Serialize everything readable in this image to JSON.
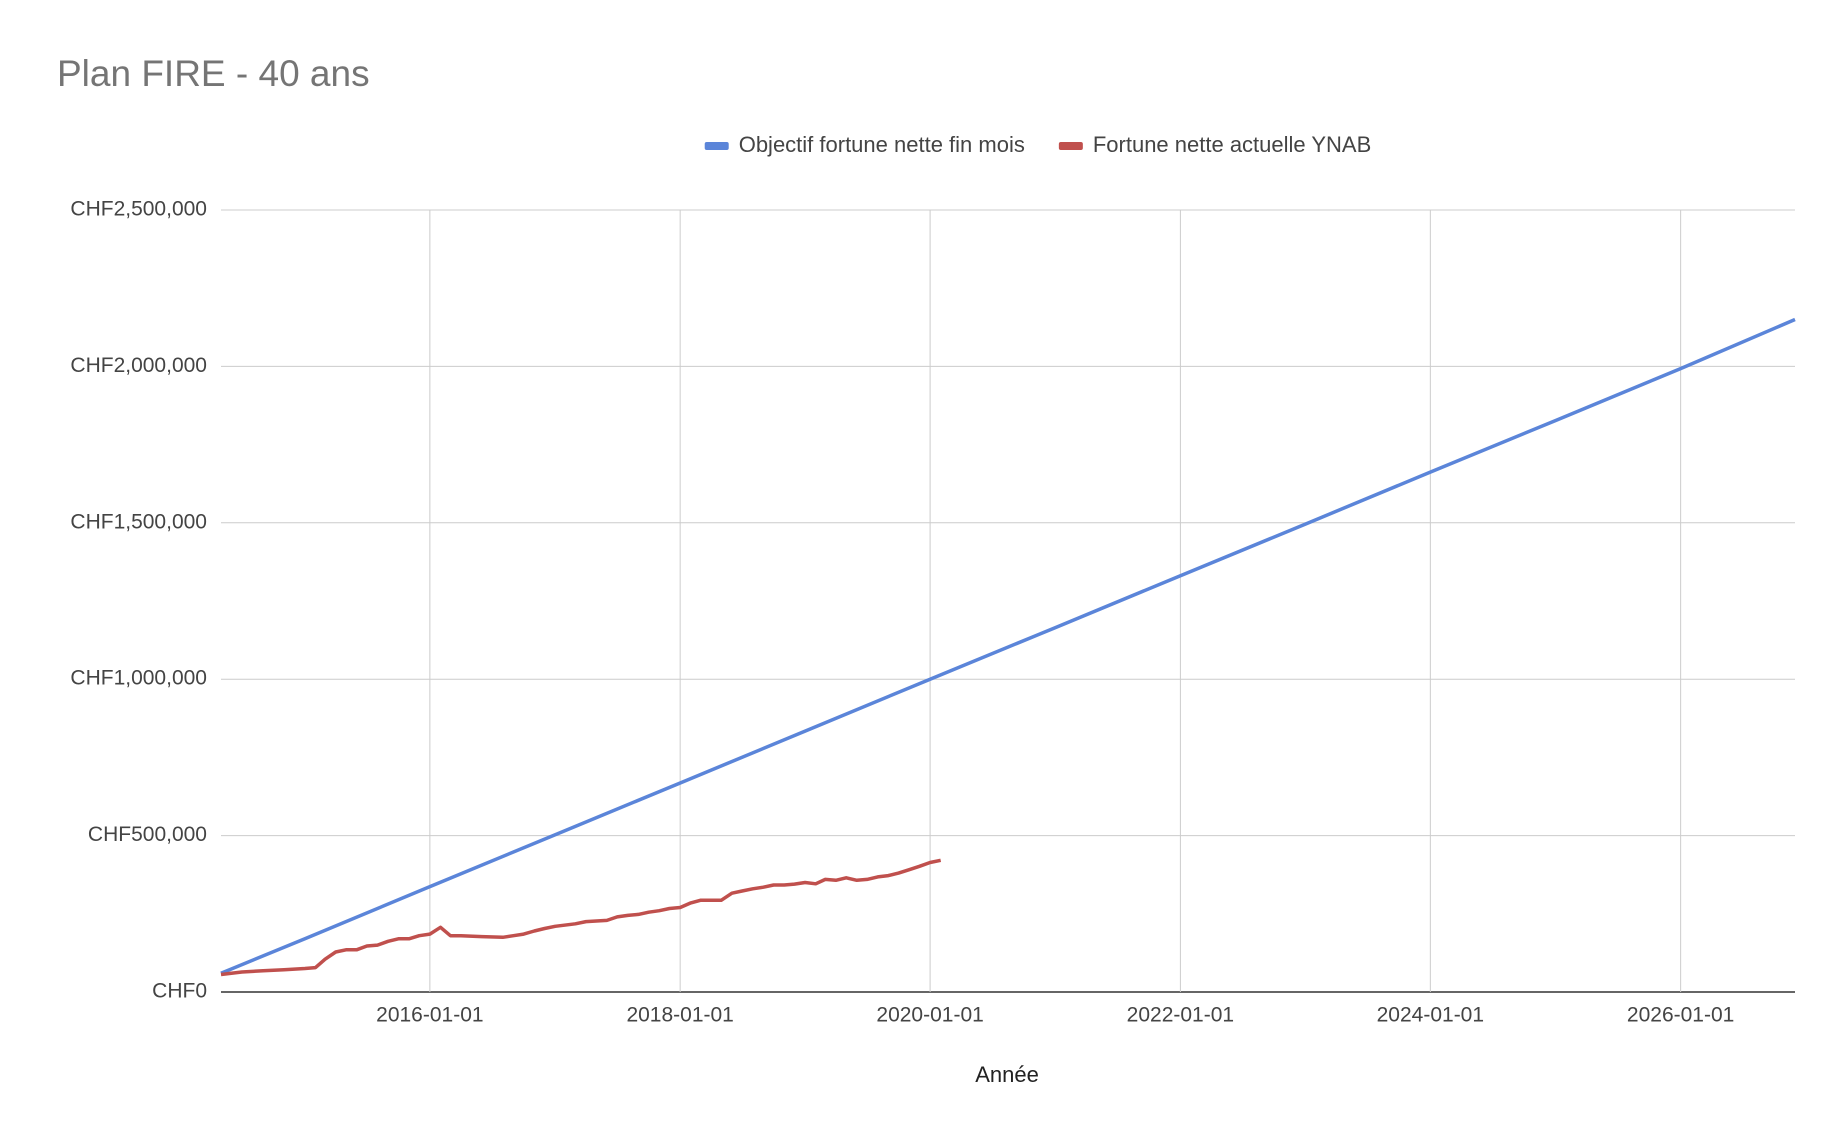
{
  "chart_data": {
    "type": "line",
    "title": "Plan FIRE - 40 ans",
    "x_label": "Année",
    "legend": "top",
    "grid": true,
    "xlim": [
      "2014-05-01",
      "2026-12-01"
    ],
    "xticks": [
      "2016-01-01",
      "2018-01-01",
      "2020-01-01",
      "2022-01-01",
      "2024-01-01",
      "2026-01-01"
    ],
    "ylim": [
      0,
      2500000
    ],
    "yticks": [
      {
        "value": 0,
        "label": "CHF0"
      },
      {
        "value": 500000,
        "label": "CHF500,000"
      },
      {
        "value": 1000000,
        "label": "CHF1,000,000"
      },
      {
        "value": 1500000,
        "label": "CHF1,500,000"
      },
      {
        "value": 2000000,
        "label": "CHF2,000,000"
      },
      {
        "value": 2500000,
        "label": "CHF2,500,000"
      }
    ],
    "series": [
      {
        "name": "Objectif fortune nette fin mois",
        "color": "#5b85d9",
        "x": [
          "2014-05-01",
          "2015-01-01",
          "2016-01-01",
          "2017-01-01",
          "2018-01-01",
          "2019-01-01",
          "2020-01-01",
          "2021-01-01",
          "2022-01-01",
          "2023-01-01",
          "2024-01-01",
          "2025-01-01",
          "2026-01-01",
          "2026-12-01"
        ],
        "values": [
          60000,
          170000,
          337000,
          503000,
          668000,
          834000,
          1000000,
          1165000,
          1331000,
          1496000,
          1662000,
          1827000,
          1993000,
          2150000
        ]
      },
      {
        "name": "Fortune nette actuelle YNAB",
        "color": "#c0504d",
        "x": [
          "2014-05-01",
          "2014-07-01",
          "2014-09-01",
          "2014-11-01",
          "2015-01-01",
          "2015-02-01",
          "2015-03-01",
          "2015-04-01",
          "2015-05-01",
          "2015-06-01",
          "2015-07-01",
          "2015-08-01",
          "2015-09-01",
          "2015-10-01",
          "2015-11-01",
          "2015-12-01",
          "2016-01-01",
          "2016-02-01",
          "2016-03-01",
          "2016-04-01",
          "2016-06-01",
          "2016-08-01",
          "2016-09-01",
          "2016-10-01",
          "2016-11-01",
          "2016-12-01",
          "2017-01-01",
          "2017-03-01",
          "2017-04-01",
          "2017-06-01",
          "2017-07-01",
          "2017-08-01",
          "2017-09-01",
          "2017-10-01",
          "2017-11-01",
          "2017-12-01",
          "2018-01-01",
          "2018-02-01",
          "2018-03-01",
          "2018-04-01",
          "2018-05-01",
          "2018-06-01",
          "2018-07-01",
          "2018-08-01",
          "2018-09-01",
          "2018-10-01",
          "2018-11-01",
          "2018-12-01",
          "2019-01-01",
          "2019-02-01",
          "2019-03-01",
          "2019-04-01",
          "2019-05-01",
          "2019-06-01",
          "2019-07-01",
          "2019-08-01",
          "2019-09-01",
          "2019-10-01",
          "2019-11-01",
          "2019-12-01",
          "2020-01-01",
          "2020-02-01"
        ],
        "values": [
          56000,
          64000,
          68000,
          71000,
          75000,
          78000,
          105000,
          128000,
          135000,
          135000,
          147000,
          150000,
          162000,
          170000,
          170000,
          180000,
          185000,
          207000,
          180000,
          180000,
          177000,
          175000,
          180000,
          185000,
          195000,
          203000,
          210000,
          218000,
          225000,
          229000,
          240000,
          245000,
          248000,
          255000,
          260000,
          267000,
          270000,
          285000,
          293000,
          293000,
          293000,
          316000,
          323000,
          330000,
          335000,
          342000,
          342000,
          345000,
          350000,
          346000,
          360000,
          357000,
          365000,
          357000,
          360000,
          368000,
          372000,
          380000,
          391000,
          402000,
          414000,
          421000
        ]
      }
    ]
  }
}
